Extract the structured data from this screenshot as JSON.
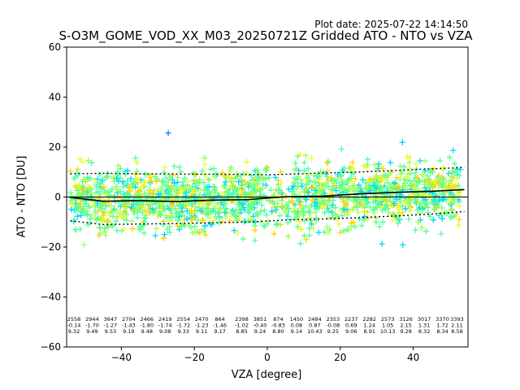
{
  "plot_date": "Plot date: 2025-07-22 14:14:50",
  "chart_data": {
    "type": "scatter",
    "title": "S-O3M_GOME_VOD_XX_M03_20250721Z Gridded ATO - NTO vs VZA",
    "xlabel": "VZA [degree]",
    "ylabel": "ATO - NTO [DU]",
    "xlim": [
      -55,
      55
    ],
    "ylim": [
      -60,
      60
    ],
    "xticks": [
      -40,
      -20,
      0,
      20,
      40
    ],
    "yticks": [
      -60,
      -40,
      -20,
      0,
      20,
      40,
      60
    ],
    "marker": "+",
    "colors": [
      "#0000cc",
      "#0080ff",
      "#00d8ff",
      "#55ff99",
      "#9cff5a",
      "#e6ff2a",
      "#ffd400"
    ],
    "mean_line": {
      "x": [
        -54,
        -45,
        -35,
        -25,
        -15,
        -5,
        0,
        5,
        15,
        25,
        35,
        45,
        54
      ],
      "y": [
        -0.14,
        -1.7,
        -1.43,
        -1.8,
        -1.23,
        -1.02,
        -0.4,
        0.08,
        0.35,
        1.24,
        1.85,
        2.3,
        3.0
      ]
    },
    "std_upper": {
      "x": [
        -54,
        -45,
        -35,
        -25,
        -15,
        -5,
        0,
        5,
        15,
        25,
        35,
        45,
        54
      ],
      "y": [
        9.3,
        9.5,
        9.3,
        9.2,
        9.1,
        9.0,
        8.9,
        9.1,
        9.6,
        10.0,
        10.6,
        11.3,
        11.8
      ]
    },
    "std_lower": {
      "x": [
        -54,
        -45,
        -35,
        -25,
        -15,
        -5,
        0,
        5,
        15,
        25,
        35,
        45,
        54
      ],
      "y": [
        -9.5,
        -11.0,
        -10.8,
        -10.6,
        -10.3,
        -10.0,
        -9.6,
        -9.2,
        -8.8,
        -8.3,
        -7.6,
        -6.8,
        -5.8
      ]
    },
    "bin_stats": [
      {
        "x": -53,
        "n": "2558",
        "mean": "-0.14",
        "std": "9.32"
      },
      {
        "x": -48,
        "n": "2944",
        "mean": "-1.70",
        "std": "9.49"
      },
      {
        "x": -43,
        "n": "3647",
        "mean": "-1.27",
        "std": "9.53"
      },
      {
        "x": -38,
        "n": "2704",
        "mean": "-1.43",
        "std": "9.19"
      },
      {
        "x": -33,
        "n": "2466",
        "mean": "-1.80",
        "std": "9.48"
      },
      {
        "x": -28,
        "n": "2419",
        "mean": "-1.74",
        "std": "9.08"
      },
      {
        "x": -23,
        "n": "2554",
        "mean": "-1.72",
        "std": "9.33"
      },
      {
        "x": -18,
        "n": "2470",
        "mean": "-1.23",
        "std": "9.11"
      },
      {
        "x": -13,
        "n": "864",
        "mean": "-1.46",
        "std": "9.17"
      },
      {
        "x": -7,
        "n": "2398",
        "mean": "-1.02",
        "std": "8.85"
      },
      {
        "x": -2,
        "n": "3851",
        "mean": "-0.40",
        "std": "9.24"
      },
      {
        "x": 3,
        "n": "874",
        "mean": "-0.83",
        "std": "8.80"
      },
      {
        "x": 8,
        "n": "1450",
        "mean": "0.08",
        "std": "9.14"
      },
      {
        "x": 13,
        "n": "2484",
        "mean": "0.87",
        "std": "10.43"
      },
      {
        "x": 18,
        "n": "2353",
        "mean": "-0.08",
        "std": "9.25"
      },
      {
        "x": 23,
        "n": "2237",
        "mean": "0.69",
        "std": "9.06"
      },
      {
        "x": 28,
        "n": "2282",
        "mean": "1.24",
        "std": "8.91"
      },
      {
        "x": 33,
        "n": "2573",
        "mean": "1.05",
        "std": "10.13"
      },
      {
        "x": 38,
        "n": "3126",
        "mean": "2.15",
        "std": "9.28"
      },
      {
        "x": 43,
        "n": "3017",
        "mean": "1.31",
        "std": "8.32"
      },
      {
        "x": 48,
        "n": "3370",
        "mean": "1.72",
        "std": "8.34"
      },
      {
        "x": 52,
        "n": "3393",
        "mean": "2.11",
        "std": "8.58"
      }
    ]
  }
}
